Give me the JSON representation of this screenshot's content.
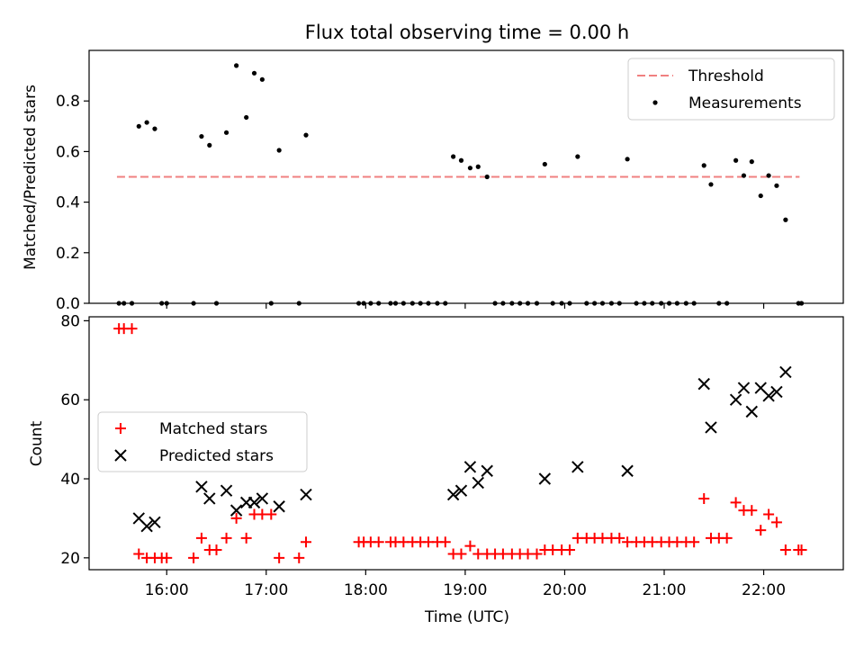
{
  "title": "Flux total observing time = 0.00 h",
  "chart_data": [
    {
      "type": "scatter",
      "ylabel": "Matched/Predicted stars",
      "ylim": [
        0,
        1.0
      ],
      "yticks": [
        "0.0",
        "0.2",
        "0.4",
        "0.6",
        "0.8"
      ],
      "legend_placement": "upper-right",
      "legend": [
        "Threshold",
        "Measurements"
      ],
      "threshold": {
        "name": "Threshold",
        "value": 0.5,
        "x_start": 15.5,
        "x_end": 22.36,
        "color": "#f08080"
      },
      "series": [
        {
          "name": "Measurements",
          "color": "#000000",
          "points": [
            [
              15.52,
              0
            ],
            [
              15.57,
              0
            ],
            [
              15.65,
              0
            ],
            [
              15.72,
              0.7
            ],
            [
              15.8,
              0.715
            ],
            [
              15.88,
              0.69
            ],
            [
              15.95,
              0
            ],
            [
              16.0,
              0
            ],
            [
              16.27,
              0
            ],
            [
              16.35,
              0.66
            ],
            [
              16.43,
              0.625
            ],
            [
              16.5,
              0
            ],
            [
              16.6,
              0.675
            ],
            [
              16.7,
              0.94
            ],
            [
              16.8,
              0.735
            ],
            [
              16.88,
              0.91
            ],
            [
              16.96,
              0.885
            ],
            [
              17.05,
              0
            ],
            [
              17.13,
              0.605
            ],
            [
              17.33,
              0
            ],
            [
              17.4,
              0.665
            ],
            [
              17.93,
              0
            ],
            [
              17.98,
              0
            ],
            [
              18.05,
              0
            ],
            [
              18.13,
              0
            ],
            [
              18.25,
              0
            ],
            [
              18.3,
              0
            ],
            [
              18.38,
              0
            ],
            [
              18.47,
              0
            ],
            [
              18.55,
              0
            ],
            [
              18.63,
              0
            ],
            [
              18.72,
              0
            ],
            [
              18.8,
              0
            ],
            [
              18.88,
              0.58
            ],
            [
              18.96,
              0.565
            ],
            [
              19.05,
              0.535
            ],
            [
              19.13,
              0.54
            ],
            [
              19.22,
              0.5
            ],
            [
              19.3,
              0
            ],
            [
              19.38,
              0
            ],
            [
              19.47,
              0
            ],
            [
              19.55,
              0
            ],
            [
              19.63,
              0
            ],
            [
              19.72,
              0
            ],
            [
              19.8,
              0.55
            ],
            [
              19.88,
              0
            ],
            [
              19.97,
              0
            ],
            [
              20.05,
              0
            ],
            [
              20.13,
              0.58
            ],
            [
              20.22,
              0
            ],
            [
              20.3,
              0
            ],
            [
              20.38,
              0
            ],
            [
              20.47,
              0
            ],
            [
              20.55,
              0
            ],
            [
              20.63,
              0.57
            ],
            [
              20.72,
              0
            ],
            [
              20.8,
              0
            ],
            [
              20.88,
              0
            ],
            [
              20.97,
              0
            ],
            [
              21.05,
              0
            ],
            [
              21.13,
              0
            ],
            [
              21.22,
              0
            ],
            [
              21.3,
              0
            ],
            [
              21.4,
              0.545
            ],
            [
              21.47,
              0.47
            ],
            [
              21.55,
              0
            ],
            [
              21.63,
              0
            ],
            [
              21.72,
              0.565
            ],
            [
              21.8,
              0.505
            ],
            [
              21.88,
              0.56
            ],
            [
              21.97,
              0.425
            ],
            [
              22.05,
              0.505
            ],
            [
              22.13,
              0.465
            ],
            [
              22.22,
              0.33
            ],
            [
              22.35,
              0
            ],
            [
              22.38,
              0
            ]
          ]
        }
      ]
    },
    {
      "type": "scatter",
      "xlabel": "Time (UTC)",
      "ylabel": "Count",
      "xlim": [
        15.22,
        22.8
      ],
      "ylim": [
        17,
        81
      ],
      "xticks": [
        "16:00",
        "17:00",
        "18:00",
        "19:00",
        "20:00",
        "21:00",
        "22:00"
      ],
      "yticks": [
        "20",
        "40",
        "60",
        "80"
      ],
      "legend_placement": "center-left",
      "legend": [
        "Matched stars",
        "Predicted stars"
      ],
      "series": [
        {
          "name": "Matched stars",
          "color": "#ff0000",
          "marker": "plus",
          "points": [
            [
              15.52,
              78
            ],
            [
              15.57,
              78
            ],
            [
              15.65,
              78
            ],
            [
              15.72,
              21
            ],
            [
              15.8,
              20
            ],
            [
              15.88,
              20
            ],
            [
              15.95,
              20
            ],
            [
              16.0,
              20
            ],
            [
              16.27,
              20
            ],
            [
              16.35,
              25
            ],
            [
              16.43,
              22
            ],
            [
              16.5,
              22
            ],
            [
              16.6,
              25
            ],
            [
              16.7,
              30
            ],
            [
              16.8,
              25
            ],
            [
              16.88,
              31
            ],
            [
              16.96,
              31
            ],
            [
              17.05,
              31
            ],
            [
              17.13,
              20
            ],
            [
              17.33,
              20
            ],
            [
              17.4,
              24
            ],
            [
              17.93,
              24
            ],
            [
              17.98,
              24
            ],
            [
              18.05,
              24
            ],
            [
              18.13,
              24
            ],
            [
              18.25,
              24
            ],
            [
              18.3,
              24
            ],
            [
              18.38,
              24
            ],
            [
              18.47,
              24
            ],
            [
              18.55,
              24
            ],
            [
              18.63,
              24
            ],
            [
              18.72,
              24
            ],
            [
              18.8,
              24
            ],
            [
              18.88,
              21
            ],
            [
              18.96,
              21
            ],
            [
              19.05,
              23
            ],
            [
              19.13,
              21
            ],
            [
              19.22,
              21
            ],
            [
              19.3,
              21
            ],
            [
              19.38,
              21
            ],
            [
              19.47,
              21
            ],
            [
              19.55,
              21
            ],
            [
              19.63,
              21
            ],
            [
              19.72,
              21
            ],
            [
              19.8,
              22
            ],
            [
              19.88,
              22
            ],
            [
              19.97,
              22
            ],
            [
              20.05,
              22
            ],
            [
              20.13,
              25
            ],
            [
              20.22,
              25
            ],
            [
              20.3,
              25
            ],
            [
              20.38,
              25
            ],
            [
              20.47,
              25
            ],
            [
              20.55,
              25
            ],
            [
              20.63,
              24
            ],
            [
              20.72,
              24
            ],
            [
              20.8,
              24
            ],
            [
              20.88,
              24
            ],
            [
              20.97,
              24
            ],
            [
              21.05,
              24
            ],
            [
              21.13,
              24
            ],
            [
              21.22,
              24
            ],
            [
              21.3,
              24
            ],
            [
              21.4,
              35
            ],
            [
              21.47,
              25
            ],
            [
              21.55,
              25
            ],
            [
              21.63,
              25
            ],
            [
              21.72,
              34
            ],
            [
              21.8,
              32
            ],
            [
              21.88,
              32
            ],
            [
              21.97,
              27
            ],
            [
              22.05,
              31
            ],
            [
              22.13,
              29
            ],
            [
              22.22,
              22
            ],
            [
              22.35,
              22
            ],
            [
              22.38,
              22
            ]
          ]
        },
        {
          "name": "Predicted stars",
          "color": "#000000",
          "marker": "x",
          "points": [
            [
              15.72,
              30
            ],
            [
              15.8,
              28
            ],
            [
              15.88,
              29
            ],
            [
              16.35,
              38
            ],
            [
              16.43,
              35
            ],
            [
              16.6,
              37
            ],
            [
              16.7,
              32
            ],
            [
              16.8,
              34
            ],
            [
              16.88,
              34
            ],
            [
              16.96,
              35
            ],
            [
              17.13,
              33
            ],
            [
              17.4,
              36
            ],
            [
              18.88,
              36
            ],
            [
              18.96,
              37
            ],
            [
              19.05,
              43
            ],
            [
              19.13,
              39
            ],
            [
              19.22,
              42
            ],
            [
              19.8,
              40
            ],
            [
              20.13,
              43
            ],
            [
              20.63,
              42
            ],
            [
              21.4,
              64
            ],
            [
              21.47,
              53
            ],
            [
              21.72,
              60
            ],
            [
              21.8,
              63
            ],
            [
              21.88,
              57
            ],
            [
              21.97,
              63
            ],
            [
              22.05,
              61
            ],
            [
              22.13,
              62
            ],
            [
              22.22,
              67
            ]
          ]
        }
      ]
    }
  ]
}
